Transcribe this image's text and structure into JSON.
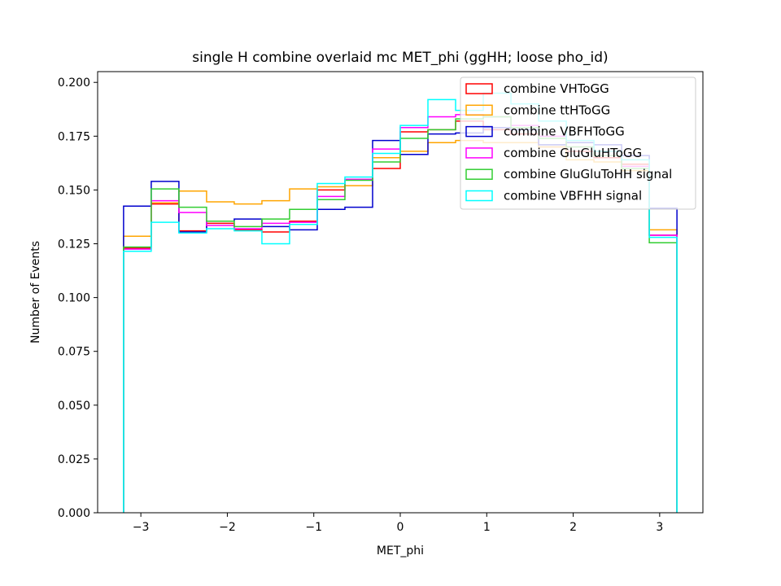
{
  "chart_data": {
    "type": "step-histogram",
    "title": "single H combine overlaid mc MET_phi (ggHH; loose pho_id)",
    "xlabel": "MET_phi",
    "ylabel": "Number of Events",
    "xlim": [
      -3.5,
      3.5
    ],
    "ylim": [
      0.0,
      0.205
    ],
    "xticks": [
      -3,
      -2,
      -1,
      0,
      1,
      2,
      3
    ],
    "xtick_labels": [
      "−3",
      "−2",
      "−1",
      "0",
      "1",
      "2",
      "3"
    ],
    "yticks": [
      0.0,
      0.025,
      0.05,
      0.075,
      0.1,
      0.125,
      0.15,
      0.175,
      0.2
    ],
    "ytick_labels": [
      "0.000",
      "0.025",
      "0.050",
      "0.075",
      "0.100",
      "0.125",
      "0.150",
      "0.175",
      "0.200"
    ],
    "grid": false,
    "legend_position": "top-right",
    "bin_edges": [
      -3.2,
      -2.88,
      -2.56,
      -2.24,
      -1.92,
      -1.6,
      -1.28,
      -0.96,
      -0.64,
      -0.32,
      0.0,
      0.32,
      0.64,
      0.96,
      1.28,
      1.6,
      1.92,
      2.24,
      2.56,
      2.88,
      3.2
    ],
    "series": [
      {
        "name": "combine VHToGG",
        "color": "#ff0000",
        "values": [
          0.123,
          0.1435,
          0.131,
          0.1345,
          0.1315,
          0.1305,
          0.1355,
          0.15,
          0.155,
          0.16,
          0.177,
          0.178,
          0.182,
          0.178,
          0.176,
          0.17,
          0.168,
          0.165,
          0.162,
          0.129
        ]
      },
      {
        "name": "combine ttHToGG",
        "color": "#ffa500",
        "values": [
          0.1285,
          0.144,
          0.1495,
          0.1445,
          0.1435,
          0.145,
          0.1505,
          0.1515,
          0.152,
          0.165,
          0.168,
          0.172,
          0.173,
          0.172,
          0.172,
          0.17,
          0.164,
          0.163,
          0.159,
          0.1315
        ]
      },
      {
        "name": "combine VBFHToGG",
        "color": "#0000cd",
        "values": [
          0.1425,
          0.154,
          0.1305,
          0.1355,
          0.1365,
          0.133,
          0.1315,
          0.141,
          0.142,
          0.173,
          0.1665,
          0.176,
          0.1765,
          0.179,
          0.178,
          0.171,
          0.172,
          0.171,
          0.166,
          0.1415
        ]
      },
      {
        "name": "combine GluGluHToGG",
        "color": "#ff00ff",
        "values": [
          0.1225,
          0.145,
          0.1395,
          0.1335,
          0.132,
          0.1345,
          0.135,
          0.147,
          0.155,
          0.169,
          0.179,
          0.184,
          0.185,
          0.184,
          0.18,
          0.175,
          0.17,
          0.166,
          0.161,
          0.129
        ]
      },
      {
        "name": "combine GluGluToHH signal",
        "color": "#32cd32",
        "values": [
          0.1235,
          0.1505,
          0.142,
          0.1355,
          0.133,
          0.1365,
          0.141,
          0.1455,
          0.1545,
          0.163,
          0.174,
          0.178,
          0.183,
          0.184,
          0.179,
          0.174,
          0.17,
          0.166,
          0.16,
          0.1255
        ]
      },
      {
        "name": "combine VBFHH signal",
        "color": "#00ffff",
        "values": [
          0.1215,
          0.135,
          0.13,
          0.132,
          0.131,
          0.125,
          0.134,
          0.153,
          0.156,
          0.167,
          0.18,
          0.192,
          0.187,
          0.195,
          0.19,
          0.182,
          0.173,
          0.168,
          0.164,
          0.128
        ]
      }
    ]
  }
}
